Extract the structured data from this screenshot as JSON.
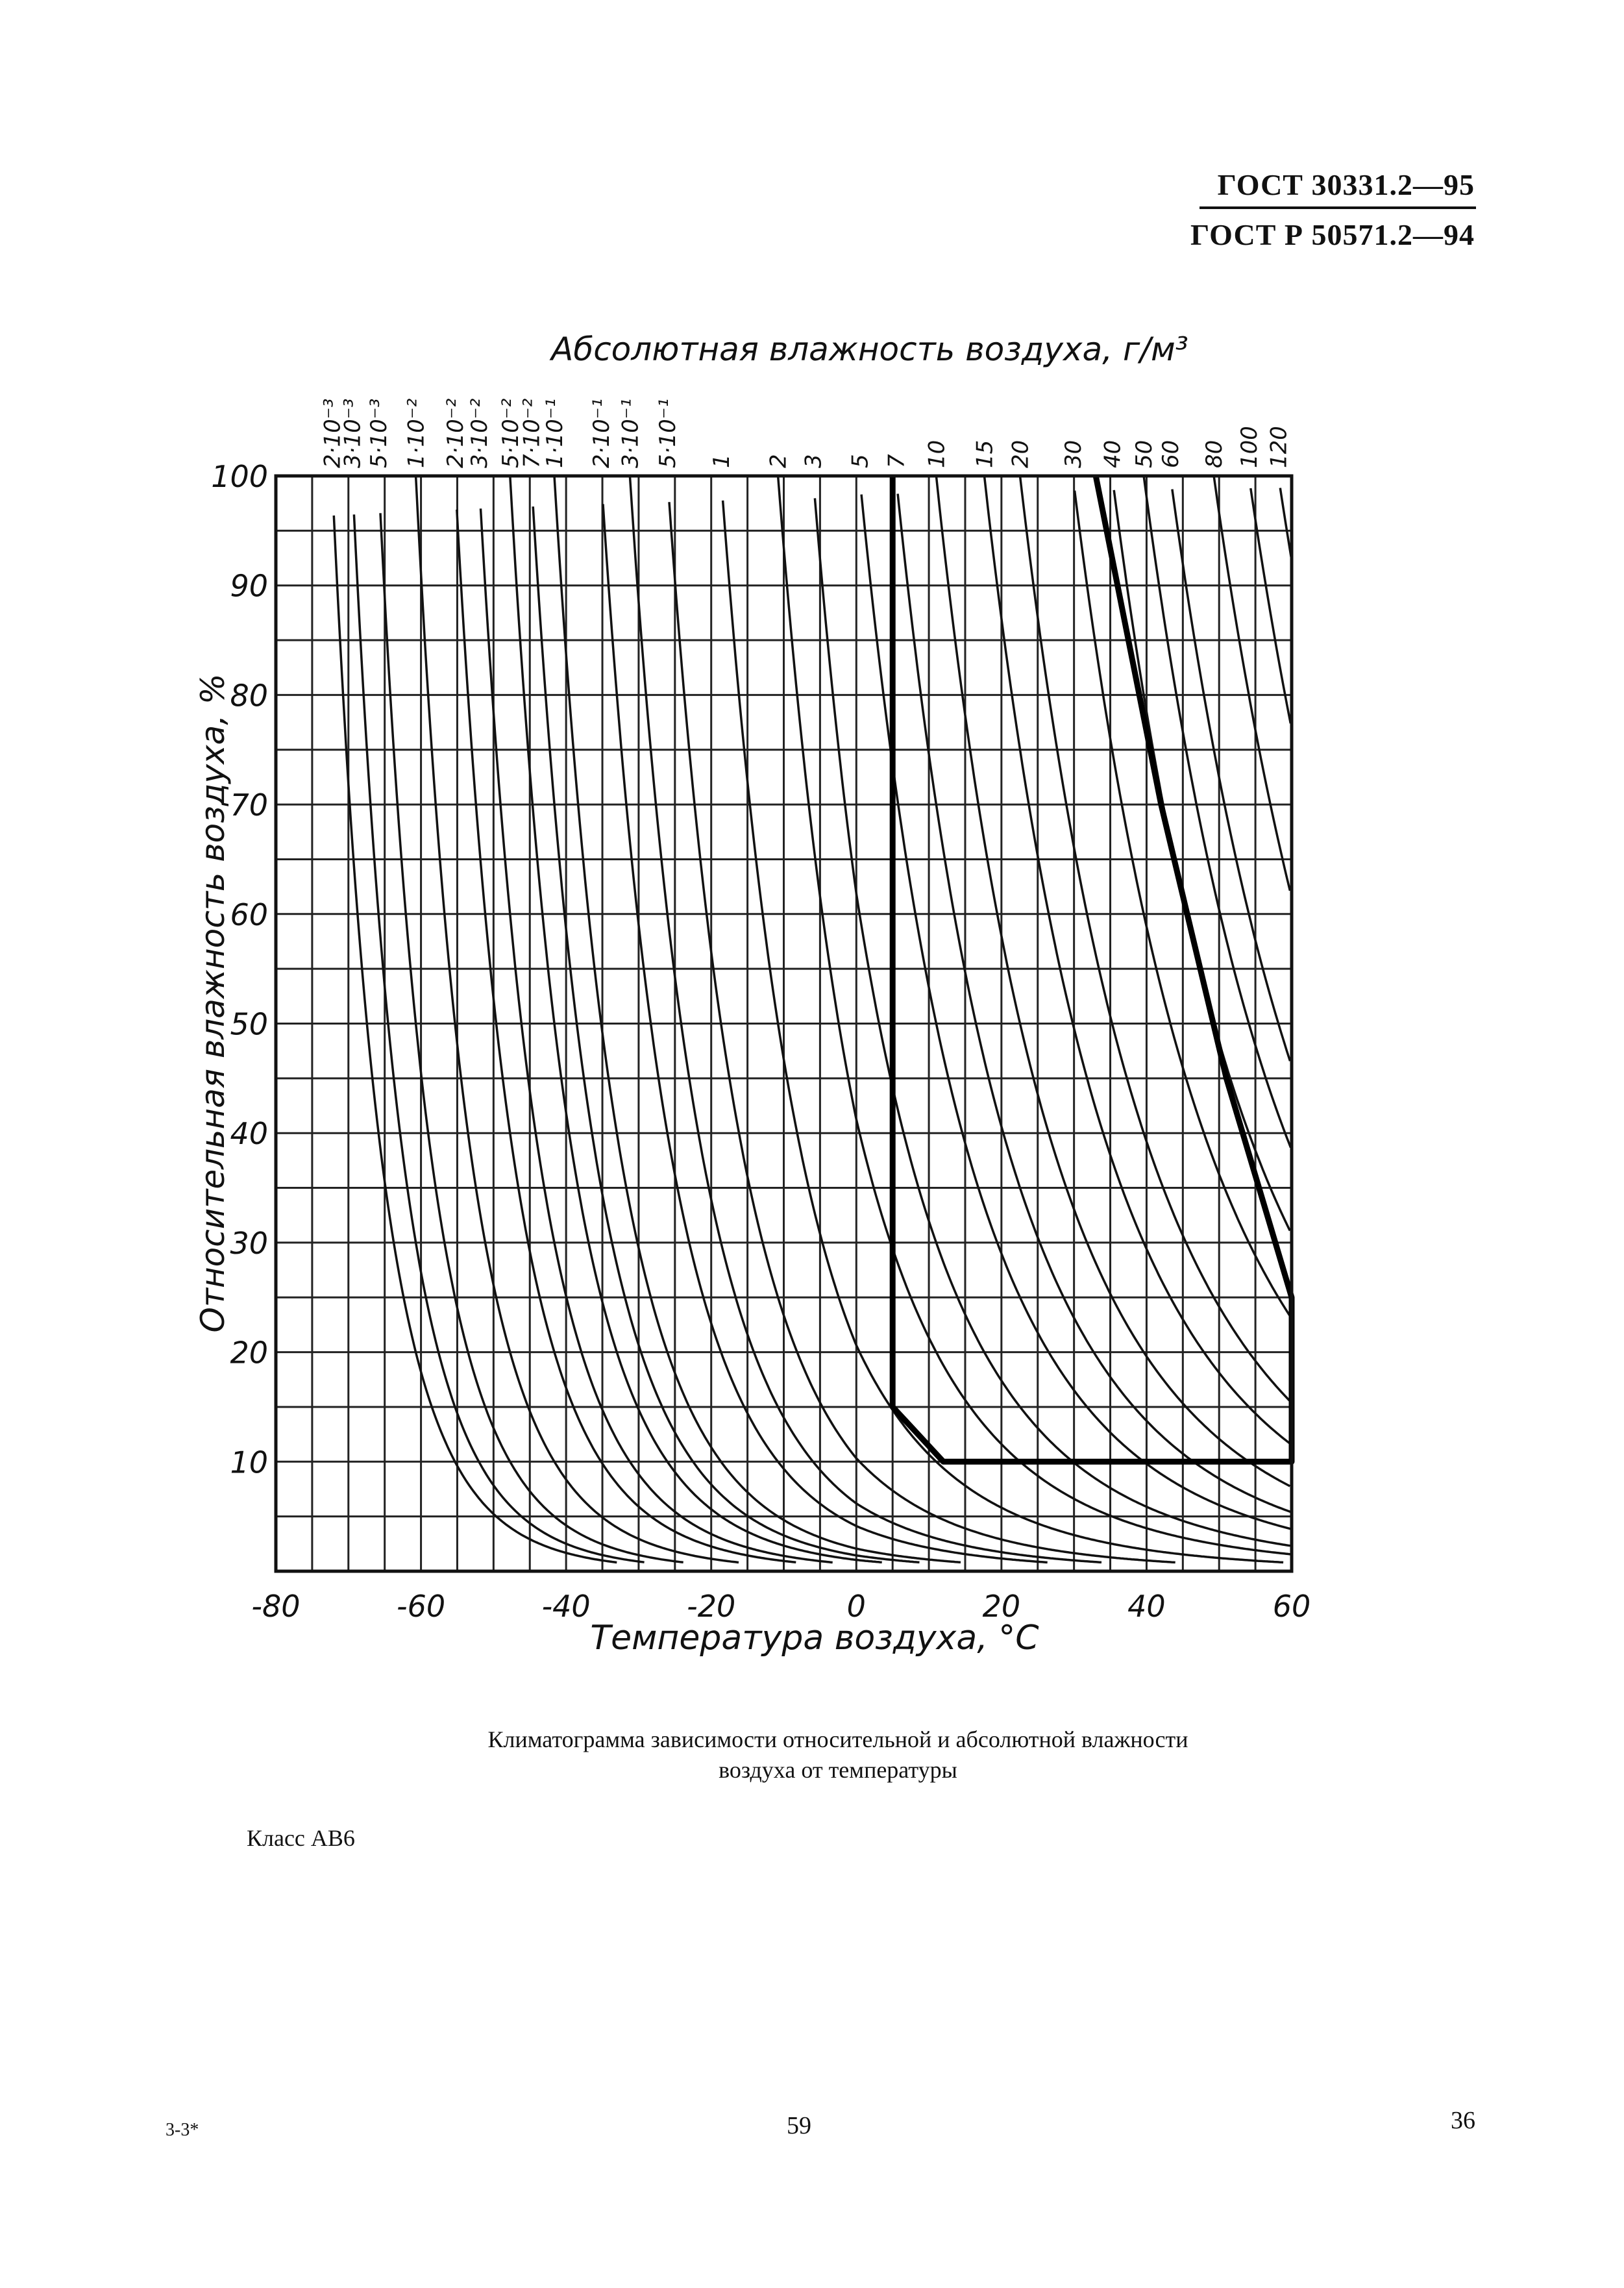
{
  "header": {
    "line1": "ГОСТ 30331.2—95",
    "line2": "ГОСТ Р 50571.2—94"
  },
  "chart_data": {
    "type": "line",
    "title": "Абсолютная влажность воздуха, г/м³",
    "xlabel": "Температура воздуха, °С",
    "ylabel": "Относительная влажность воздуха, %",
    "xlim": [
      -80,
      60
    ],
    "ylim": [
      0,
      100
    ],
    "x_ticks": [
      -80,
      -60,
      -40,
      -20,
      0,
      20,
      40,
      60
    ],
    "y_ticks": [
      10,
      20,
      30,
      40,
      50,
      60,
      70,
      80,
      90,
      100
    ],
    "grid": true,
    "series_labels": [
      "2·10⁻³",
      "3·10⁻³",
      "5·10⁻³",
      "1·10⁻²",
      "2·10⁻²",
      "3·10⁻²",
      "5·10⁻²",
      "7·10⁻²",
      "1·10⁻¹",
      "2·10⁻¹",
      "3·10⁻¹",
      "5·10⁻¹",
      "1",
      "2",
      "3",
      "5",
      "7",
      "10",
      "15",
      "20",
      "30",
      "40",
      "50",
      "60",
      "80",
      "100",
      "120"
    ],
    "absolute_humidity_g_m3": [
      0.002,
      0.003,
      0.005,
      0.01,
      0.02,
      0.03,
      0.05,
      0.07,
      0.1,
      0.2,
      0.3,
      0.5,
      1,
      2,
      3,
      5,
      7,
      10,
      15,
      20,
      30,
      40,
      50,
      60,
      80,
      100,
      120
    ],
    "class_boundary": {
      "points": [
        [
          5,
          100
        ],
        [
          5,
          15
        ],
        [
          12,
          10
        ],
        [
          60,
          10
        ],
        [
          60,
          25
        ],
        [
          51,
          45
        ],
        [
          42,
          70
        ],
        [
          33,
          100
        ]
      ]
    }
  },
  "caption": {
    "line1": "Климатограмма зависимости относительной и абсолютной влажности",
    "line2": "воздуха от температуры"
  },
  "class_label": "Класс АВ6",
  "footer": {
    "left": "3-3*",
    "center": "59",
    "right": "36"
  }
}
